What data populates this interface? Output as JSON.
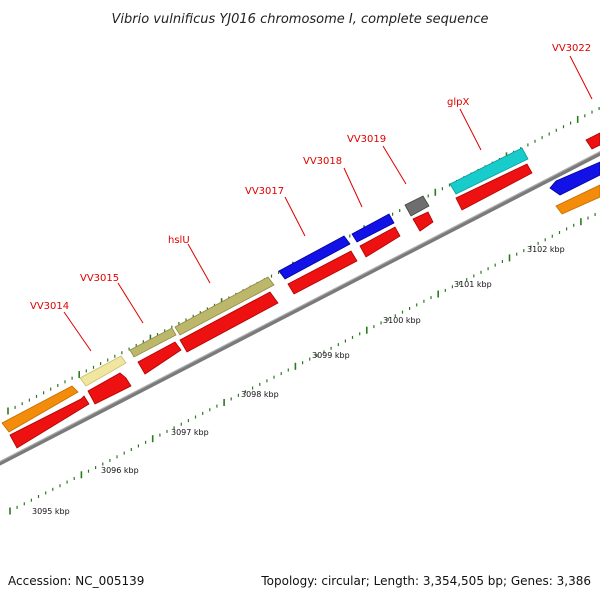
{
  "title": "Vibrio vulnificus YJ016 chromosome I, complete sequence",
  "footer": {
    "accession": "Accession: NC_005139",
    "topology": "Topology: circular; Length: 3,354,505 bp; Genes: 3,386"
  },
  "colors": {
    "backbone": "#8c8c8c",
    "tick": "#2a7a1e",
    "label": "#e00000",
    "cds": "#ee1111"
  },
  "kbp_labels": [
    "3095 kbp",
    "3096 kbp",
    "3097 kbp",
    "3098 kbp",
    "3099 kbp",
    "3100 kbp",
    "3101 kbp",
    "3102 kbp"
  ],
  "gene_labels": [
    "VV3014",
    "VV3015",
    "hslU",
    "VV3017",
    "VV3018",
    "VV3019",
    "glpX",
    "VV3022"
  ],
  "genes": [
    {
      "color": "#f28c0a",
      "lane": "outer"
    },
    {
      "color": "#f0e6a0",
      "lane": "outer"
    },
    {
      "color": "#bdb76b",
      "lane": "outer"
    },
    {
      "color": "#bdb76b",
      "lane": "outer"
    },
    {
      "color": "#1212e6",
      "lane": "outer"
    },
    {
      "color": "#1212e6",
      "lane": "outer"
    },
    {
      "color": "#6e6e6e",
      "lane": "outer"
    },
    {
      "color": "#19cccc",
      "lane": "outer"
    },
    {
      "color": "#1212e6",
      "lane": "outer"
    },
    {
      "color": "#f28c0a",
      "lane": "outer"
    }
  ]
}
